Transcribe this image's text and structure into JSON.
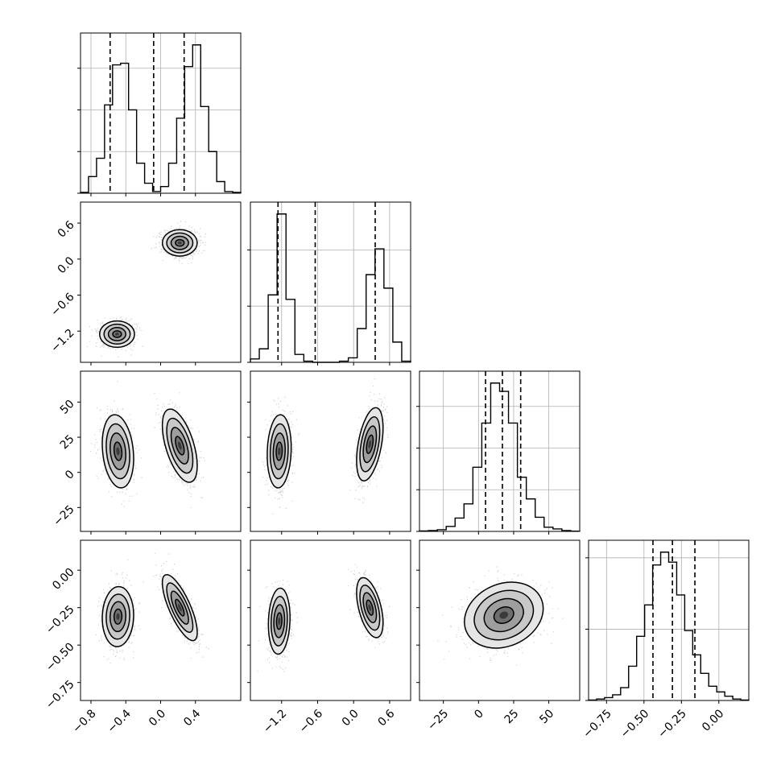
{
  "chart_data": {
    "type": "corner",
    "grid": true,
    "parameters": [
      {
        "range": [
          -0.92,
          0.92
        ],
        "ticks": [
          -0.8,
          -0.4,
          0.0,
          0.4
        ],
        "tick_labels": [
          "−0.8",
          "−0.4",
          "0.0",
          "0.4"
        ],
        "hist_counts": [
          0.5,
          10,
          21,
          53,
          77,
          78,
          50,
          18,
          6,
          1,
          4,
          18,
          45,
          76,
          89,
          52,
          25,
          7,
          1,
          0.5
        ],
        "quantiles": [
          -0.58,
          -0.08,
          0.27
        ],
        "modes": [
          {
            "mean": -0.5,
            "sd": 0.11
          },
          {
            "mean": 0.22,
            "sd": 0.11
          }
        ]
      },
      {
        "range": [
          -1.72,
          0.95
        ],
        "ticks": [
          -1.2,
          -0.6,
          0.0,
          0.6
        ],
        "tick_labels": [
          "−1.2",
          "−0.6",
          "0.0",
          "0.6"
        ],
        "hist_counts": [
          3,
          12,
          60,
          132,
          56,
          7,
          1,
          0,
          0,
          0,
          1,
          4,
          30,
          78,
          101,
          66,
          18,
          1
        ],
        "quantiles": [
          -1.26,
          -0.64,
          0.36
        ],
        "modes": [
          {
            "mean": -1.25,
            "sd": 0.12
          },
          {
            "mean": 0.27,
            "sd": 0.12
          }
        ]
      },
      {
        "range": [
          -42,
          72
        ],
        "ticks": [
          -25,
          0,
          25,
          50
        ],
        "tick_labels": [
          "−25",
          "0",
          "25",
          "50"
        ],
        "hist_counts": [
          0.5,
          1,
          2,
          6,
          16,
          33,
          77,
          130,
          178,
          168,
          130,
          65,
          39,
          17,
          5,
          3,
          1,
          0.3
        ],
        "quantiles": [
          5,
          17,
          30
        ],
        "modes": [
          {
            "mean": 18,
            "sd": 13
          }
        ]
      },
      {
        "range": [
          -0.87,
          0.2
        ],
        "ticks": [
          -0.75,
          -0.5,
          -0.25,
          0.0
        ],
        "tick_labels": [
          "−0.75",
          "−0.50",
          "−0.25",
          "0.00"
        ],
        "hist_counts": [
          0.3,
          1,
          2,
          4,
          9,
          24,
          45,
          67,
          95,
          104,
          97,
          74,
          49,
          32,
          19,
          10,
          6,
          3,
          1,
          0.3
        ],
        "quantiles": [
          -0.44,
          -0.31,
          -0.16
        ],
        "modes": [
          {
            "mean": -0.3,
            "sd": 0.11
          }
        ]
      }
    ],
    "pair_panels": [
      {
        "row": 1,
        "col": 0,
        "yticks": [
          -1.2,
          -0.6,
          0.0,
          0.6
        ],
        "y_tick_labels": [
          "−1.2",
          "−0.6",
          "0.0",
          "0.6"
        ],
        "clusters": [
          {
            "cx": -0.5,
            "cy": -1.25,
            "sx": 0.1,
            "sy": 0.11,
            "rho": 0.0
          },
          {
            "cx": 0.22,
            "cy": 0.27,
            "sx": 0.1,
            "sy": 0.11,
            "rho": 0.0
          }
        ]
      },
      {
        "row": 2,
        "col": 0,
        "yticks": [
          -25,
          0,
          25,
          50
        ],
        "y_tick_labels": [
          "−25",
          "0",
          "25",
          "50"
        ],
        "clusters": [
          {
            "cx": -0.49,
            "cy": 15,
            "sx": 0.09,
            "sy": 13,
            "rho": -0.2
          },
          {
            "cx": 0.22,
            "cy": 19,
            "sx": 0.1,
            "sy": 13,
            "rho": -0.55
          }
        ]
      },
      {
        "row": 2,
        "col": 1,
        "yticks": [
          -25,
          0,
          25,
          50
        ],
        "y_tick_labels": [
          "−25",
          "0",
          "25",
          "50"
        ],
        "clusters": [
          {
            "cx": -1.24,
            "cy": 15,
            "sx": 0.1,
            "sy": 13,
            "rho": 0.1
          },
          {
            "cx": 0.27,
            "cy": 20,
            "sx": 0.11,
            "sy": 13,
            "rho": 0.45
          }
        ]
      },
      {
        "row": 3,
        "col": 0,
        "yticks": [
          -0.75,
          -0.5,
          -0.25,
          0.0
        ],
        "y_tick_labels": [
          "−0.75",
          "−0.50",
          "−0.25",
          "0.00"
        ],
        "clusters": [
          {
            "cx": -0.49,
            "cy": -0.31,
            "sx": 0.09,
            "sy": 0.1,
            "rho": 0.05
          },
          {
            "cx": 0.22,
            "cy": -0.25,
            "sx": 0.1,
            "sy": 0.11,
            "rho": -0.75
          }
        ]
      },
      {
        "row": 3,
        "col": 1,
        "yticks": [
          -0.75,
          -0.5,
          -0.25,
          0.0
        ],
        "y_tick_labels": [
          "−0.75",
          "−0.50",
          "−0.25",
          "0.00"
        ],
        "clusters": [
          {
            "cx": -1.24,
            "cy": -0.34,
            "sx": 0.09,
            "sy": 0.11,
            "rho": 0.1
          },
          {
            "cx": 0.27,
            "cy": -0.25,
            "sx": 0.11,
            "sy": 0.1,
            "rho": -0.5
          }
        ]
      },
      {
        "row": 3,
        "col": 2,
        "yticks": [
          -0.75,
          -0.5,
          -0.25,
          0.0
        ],
        "y_tick_labels": [
          "−0.75",
          "−0.50",
          "−0.25",
          "0.00"
        ],
        "clusters": [
          {
            "cx": 18,
            "cy": -0.3,
            "sx": 14,
            "sy": 0.11,
            "rho": 0.2
          }
        ]
      }
    ]
  }
}
